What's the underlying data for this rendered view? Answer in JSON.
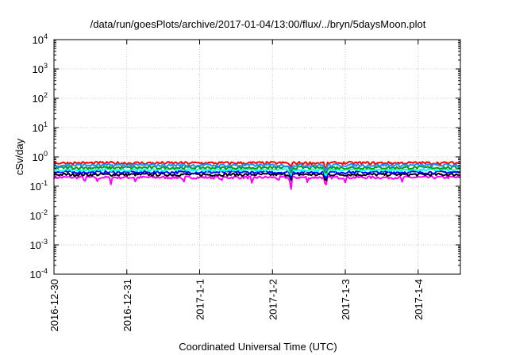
{
  "chart_data": {
    "type": "line",
    "title": "/data/run/goesPlots/archive/2017-01-04/13:00/flux/../bryn/5daysMoon.plot",
    "xlabel": "Coordinated Universal Time (UTC)",
    "ylabel": "cSv/day",
    "y_scale": "log",
    "ylim": [
      0.0001,
      10000
    ],
    "y_ticks": [
      {
        "value": 0.0001,
        "base": "10",
        "exp": "-4"
      },
      {
        "value": 0.001,
        "base": "10",
        "exp": "-3"
      },
      {
        "value": 0.01,
        "base": "10",
        "exp": "-2"
      },
      {
        "value": 0.1,
        "base": "10",
        "exp": "-1"
      },
      {
        "value": 1,
        "base": "10",
        "exp": "0"
      },
      {
        "value": 10,
        "base": "10",
        "exp": "1"
      },
      {
        "value": 100,
        "base": "10",
        "exp": "2"
      },
      {
        "value": 1000,
        "base": "10",
        "exp": "3"
      },
      {
        "value": 10000,
        "base": "10",
        "exp": "4"
      }
    ],
    "x_ticks": [
      "2016-12-30",
      "2016-12-31",
      "2017-1-1",
      "2017-1-2",
      "2017-1-3",
      "2017-1-4"
    ],
    "xlim_days": [
      0,
      5.58
    ],
    "grid": true,
    "series": [
      {
        "color": "#ff00ff",
        "base": 0.2,
        "dips": [
          [
            0.42,
            0.12
          ],
          [
            0.6,
            0.13
          ],
          [
            0.78,
            0.11
          ],
          [
            1.12,
            0.13
          ],
          [
            1.78,
            0.12
          ],
          [
            2.3,
            0.14
          ],
          [
            2.72,
            0.11
          ],
          [
            3.08,
            0.14
          ],
          [
            3.25,
            0.04
          ],
          [
            3.48,
            0.13
          ],
          [
            3.73,
            0.05
          ],
          [
            4.0,
            0.13
          ],
          [
            4.78,
            0.14
          ]
        ]
      },
      {
        "color": "#000000",
        "base": 0.25,
        "dips": [
          [
            3.25,
            0.13
          ],
          [
            3.73,
            0.09
          ]
        ]
      },
      {
        "color": "#0000ff",
        "base": 0.3,
        "dips": [
          [
            3.25,
            0.16
          ],
          [
            3.73,
            0.11
          ]
        ]
      },
      {
        "color": "#00ffff",
        "base": 0.36,
        "dips": [
          [
            3.25,
            0.2
          ],
          [
            3.73,
            0.14
          ]
        ]
      },
      {
        "color": "#00a000",
        "base": 0.43,
        "dips": [
          [
            3.25,
            0.25
          ],
          [
            3.73,
            0.18
          ]
        ]
      },
      {
        "color": "#ff0000",
        "base": 0.62,
        "dips": [
          [
            3.25,
            0.35
          ],
          [
            3.73,
            0.25
          ]
        ]
      },
      {
        "color": "#1e90ff",
        "base": 0.52,
        "dips": [
          [
            3.25,
            0.3
          ],
          [
            3.73,
            0.22
          ]
        ]
      }
    ]
  }
}
